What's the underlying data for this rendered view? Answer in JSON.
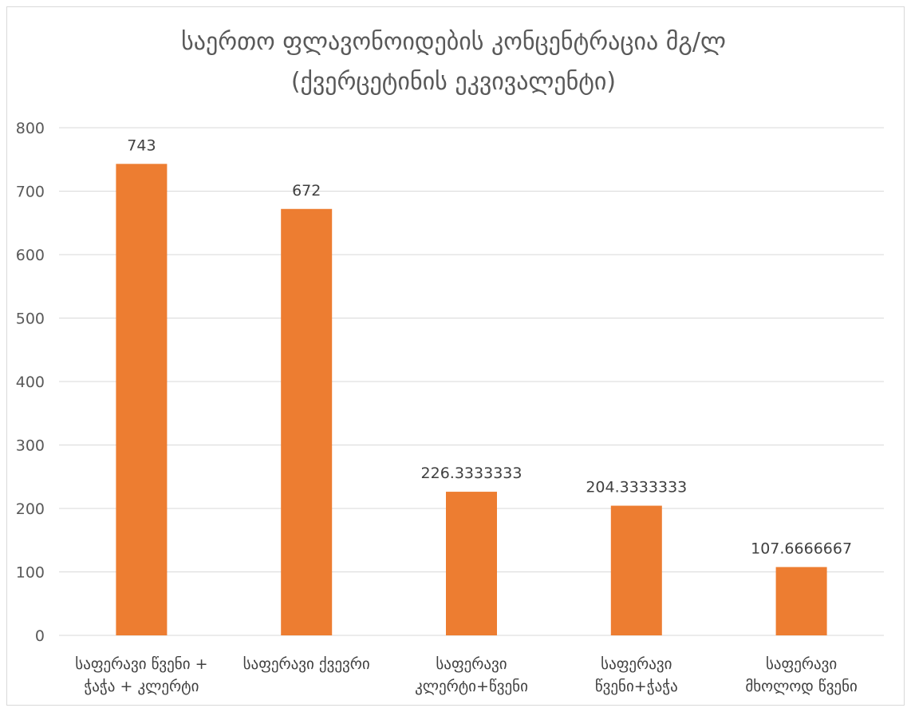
{
  "chart_data": {
    "type": "bar",
    "title_lines": [
      "საერთო ფლავონოიდების კონცენტრაცია მგ/ლ",
      "(ქვერცეტინის ეკვივალენტი)"
    ],
    "categories": [
      [
        "საფერავი წვენი +",
        "ჭაჭა + კლერტი"
      ],
      [
        "საფერავი ქვევრი"
      ],
      [
        "საფერავი",
        "კლერტი+წვენი"
      ],
      [
        "საფერავი",
        "წვენი+ჭაჭა"
      ],
      [
        "საფერავი",
        "მხოლოდ წვენი"
      ]
    ],
    "values": [
      743,
      672,
      226.3333333,
      204.3333333,
      107.6666667
    ],
    "data_labels": [
      "743",
      "672",
      "226.3333333",
      "204.3333333",
      "107.6666667"
    ],
    "ylim": [
      0,
      800
    ],
    "yticks": [
      0,
      100,
      200,
      300,
      400,
      500,
      600,
      700,
      800
    ],
    "grid": true,
    "legend": "none",
    "bar_color": "#ed7d31",
    "grid_color": "#d9d9d9",
    "text_color": "#595959"
  }
}
